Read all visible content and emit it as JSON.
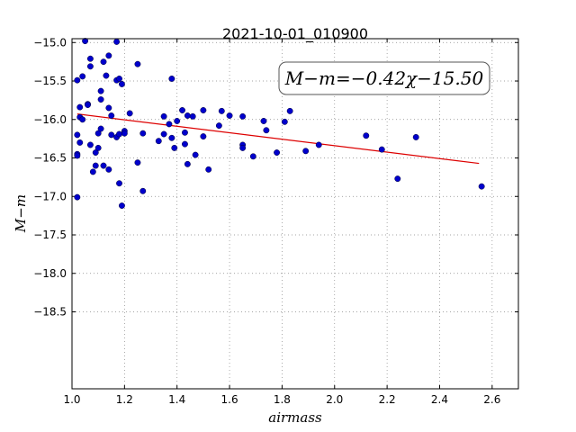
{
  "chart_data": {
    "type": "scatter",
    "title": "2021-10-01_010900",
    "xlabel": "airmass",
    "ylabel": "M−m",
    "xlim": [
      1.0,
      2.7
    ],
    "ylim": [
      -14.95,
      -19.5
    ],
    "y_inverted": true,
    "grid": true,
    "xticks": [
      "1.0",
      "1.2",
      "1.4",
      "1.6",
      "1.8",
      "2.0",
      "2.2",
      "2.4",
      "2.6"
    ],
    "yticks": [
      "−15.0",
      "−15.5",
      "−16.0",
      "−16.5",
      "−17.0",
      "−17.5",
      "−18.0",
      "−18.5"
    ],
    "annotation": "M−m=−0.42χ−15.50",
    "marker_color": "#0000cc",
    "fit_color": "#dd0000",
    "fit_line": {
      "slope": -0.42,
      "intercept": -15.5,
      "x_range": [
        1.02,
        2.55
      ]
    },
    "points": [
      [
        1.02,
        -16.45
      ],
      [
        1.02,
        -16.47
      ],
      [
        1.02,
        -16.2
      ],
      [
        1.02,
        -15.49
      ],
      [
        1.02,
        -17.01
      ],
      [
        1.03,
        -15.84
      ],
      [
        1.03,
        -15.97
      ],
      [
        1.03,
        -16.3
      ],
      [
        1.04,
        -15.44
      ],
      [
        1.04,
        -16.0
      ],
      [
        1.05,
        -14.98
      ],
      [
        1.06,
        -15.8
      ],
      [
        1.06,
        -15.81
      ],
      [
        1.07,
        -15.21
      ],
      [
        1.07,
        -15.31
      ],
      [
        1.07,
        -16.33
      ],
      [
        1.08,
        -16.68
      ],
      [
        1.09,
        -16.6
      ],
      [
        1.09,
        -16.43
      ],
      [
        1.1,
        -16.37
      ],
      [
        1.1,
        -16.18
      ],
      [
        1.11,
        -15.74
      ],
      [
        1.11,
        -15.63
      ],
      [
        1.11,
        -16.12
      ],
      [
        1.12,
        -15.25
      ],
      [
        1.12,
        -16.6
      ],
      [
        1.13,
        -15.43
      ],
      [
        1.14,
        -15.85
      ],
      [
        1.14,
        -16.65
      ],
      [
        1.14,
        -15.17
      ],
      [
        1.15,
        -15.95
      ],
      [
        1.15,
        -16.2
      ],
      [
        1.17,
        -14.99
      ],
      [
        1.17,
        -15.49
      ],
      [
        1.17,
        -16.23
      ],
      [
        1.18,
        -15.47
      ],
      [
        1.18,
        -16.19
      ],
      [
        1.18,
        -16.83
      ],
      [
        1.19,
        -17.12
      ],
      [
        1.19,
        -15.54
      ],
      [
        1.2,
        -16.15
      ],
      [
        1.2,
        -16.18
      ],
      [
        1.22,
        -15.92
      ],
      [
        1.25,
        -15.28
      ],
      [
        1.25,
        -16.56
      ],
      [
        1.27,
        -16.18
      ],
      [
        1.27,
        -16.93
      ],
      [
        1.33,
        -16.28
      ],
      [
        1.35,
        -15.96
      ],
      [
        1.35,
        -16.19
      ],
      [
        1.37,
        -16.06
      ],
      [
        1.38,
        -15.47
      ],
      [
        1.38,
        -16.24
      ],
      [
        1.39,
        -16.37
      ],
      [
        1.4,
        -16.02
      ],
      [
        1.42,
        -15.88
      ],
      [
        1.43,
        -16.32
      ],
      [
        1.43,
        -16.17
      ],
      [
        1.44,
        -16.58
      ],
      [
        1.44,
        -15.95
      ],
      [
        1.46,
        -15.96
      ],
      [
        1.47,
        -16.46
      ],
      [
        1.5,
        -15.88
      ],
      [
        1.5,
        -16.22
      ],
      [
        1.52,
        -16.65
      ],
      [
        1.56,
        -16.08
      ],
      [
        1.57,
        -15.89
      ],
      [
        1.6,
        -15.95
      ],
      [
        1.65,
        -15.96
      ],
      [
        1.65,
        -16.33
      ],
      [
        1.65,
        -16.37
      ],
      [
        1.69,
        -16.48
      ],
      [
        1.73,
        -16.02
      ],
      [
        1.74,
        -16.14
      ],
      [
        1.78,
        -16.43
      ],
      [
        1.81,
        -16.03
      ],
      [
        1.83,
        -15.89
      ],
      [
        1.89,
        -16.41
      ],
      [
        1.94,
        -16.33
      ],
      [
        2.12,
        -16.21
      ],
      [
        2.18,
        -16.39
      ],
      [
        2.24,
        -16.77
      ],
      [
        2.31,
        -16.23
      ],
      [
        2.56,
        -16.87
      ]
    ]
  }
}
